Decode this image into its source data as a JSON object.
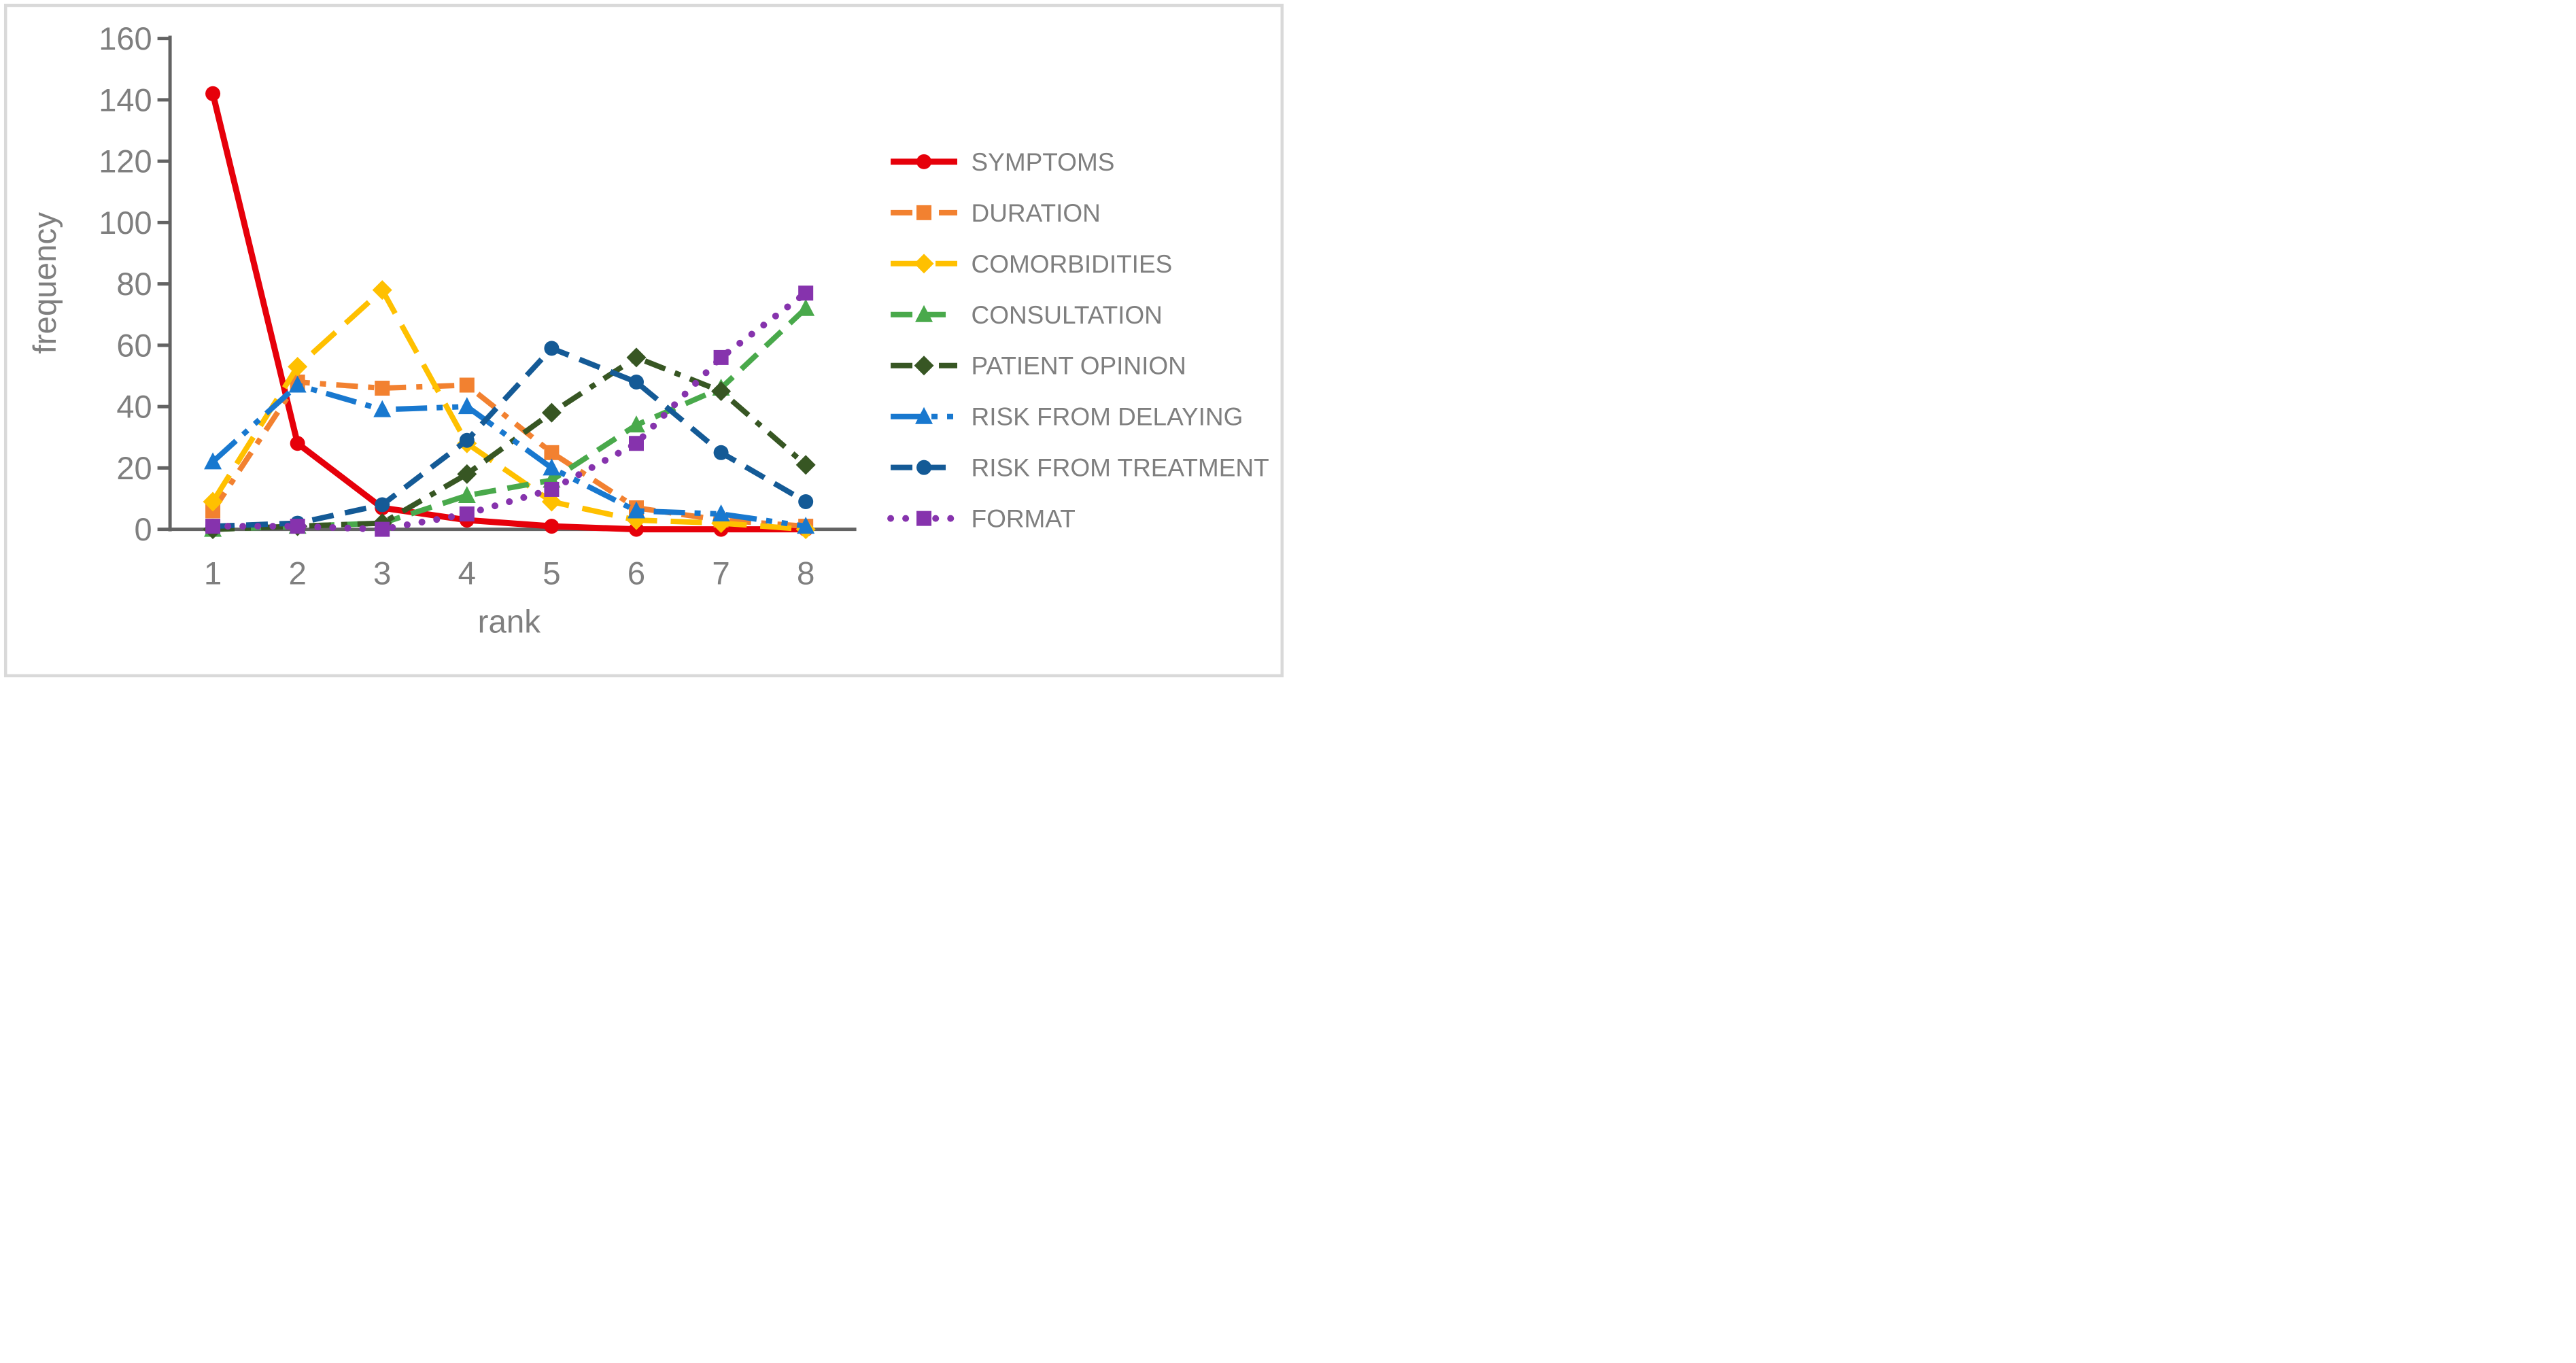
{
  "figure": {
    "border_color": "#d9d9d9",
    "background": "#ffffff"
  },
  "axis": {
    "line_color": "#636363",
    "text_color": "#7f7f7f"
  },
  "chart_data": {
    "type": "line",
    "title": "",
    "xlabel": "rank",
    "ylabel": "frequency",
    "x": [
      1,
      2,
      3,
      4,
      5,
      6,
      7,
      8
    ],
    "xtick_labels": [
      "1",
      "2",
      "3",
      "4",
      "5",
      "6",
      "7",
      "8"
    ],
    "ylim": [
      0,
      160
    ],
    "ytick_step": 20,
    "ytick_labels": [
      "0",
      "20",
      "40",
      "60",
      "80",
      "100",
      "120",
      "140",
      "160"
    ],
    "grid": false,
    "legend_position": "right",
    "series": [
      {
        "name": "SYMPTOMS",
        "color": "#e6000a",
        "marker": "circle",
        "line_style": "solid",
        "values": [
          142,
          28,
          7,
          3,
          1,
          0,
          0,
          0
        ]
      },
      {
        "name": "DURATION",
        "color": "#f28130",
        "marker": "square",
        "line_style": "dash-dot",
        "values": [
          6,
          48,
          46,
          47,
          25,
          7,
          3,
          1
        ]
      },
      {
        "name": "COMORBIDITIES",
        "color": "#ffc000",
        "marker": "diamond",
        "line_style": "long-dash",
        "values": [
          9,
          53,
          78,
          28,
          9,
          3,
          2,
          0
        ]
      },
      {
        "name": "CONSULTATION",
        "color": "#49a94b",
        "marker": "triangle",
        "line_style": "dash",
        "values": [
          0,
          1,
          2,
          11,
          16,
          34,
          46,
          72
        ]
      },
      {
        "name": "PATIENT OPINION",
        "color": "#375623",
        "marker": "diamond",
        "line_style": "dash-dot",
        "values": [
          0,
          1,
          2,
          18,
          38,
          56,
          45,
          21
        ]
      },
      {
        "name": "RISK FROM DELAYING",
        "color": "#1878cf",
        "marker": "triangle",
        "line_style": "dash-dot-dot",
        "values": [
          22,
          47,
          39,
          40,
          20,
          6,
          5,
          1
        ]
      },
      {
        "name": "RISK FROM TREATMENT",
        "color": "#145a96",
        "marker": "circle",
        "line_style": "dash",
        "values": [
          1,
          2,
          8,
          29,
          59,
          48,
          25,
          9
        ]
      },
      {
        "name": "FORMAT",
        "color": "#8633ad",
        "marker": "square",
        "line_style": "dotted",
        "values": [
          1,
          1,
          0,
          5,
          13,
          28,
          56,
          77
        ]
      }
    ]
  }
}
